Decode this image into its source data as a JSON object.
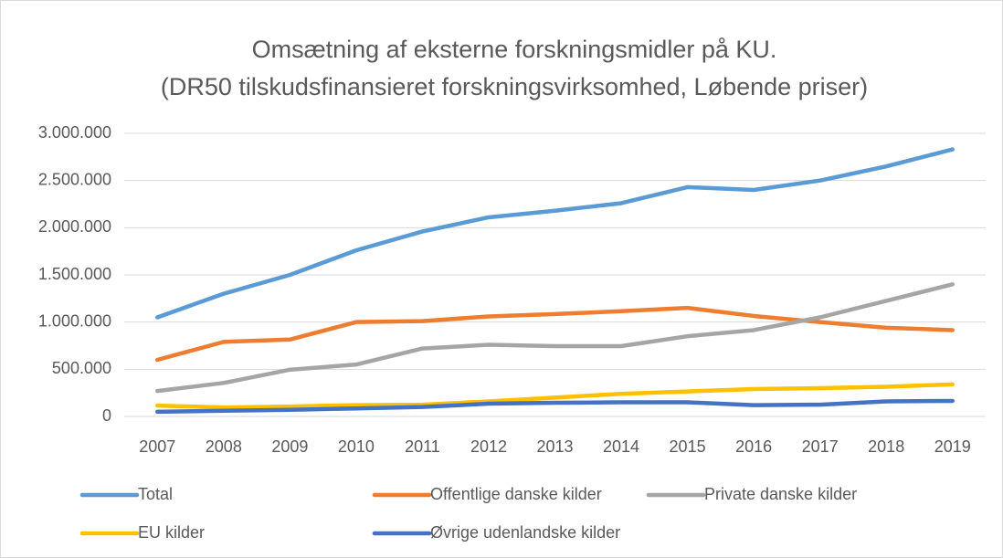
{
  "chart_data": {
    "type": "line",
    "title": "Omsætning af eksterne forskningsmidler på KU.",
    "subtitle": "(DR50 tilskudsfinansieret forskningsvirksomhed, Løbende priser)",
    "categories": [
      "2007",
      "2008",
      "2009",
      "2010",
      "2011",
      "2012",
      "2013",
      "2014",
      "2015",
      "2016",
      "2017",
      "2018",
      "2019"
    ],
    "series": [
      {
        "name": "Total",
        "color": "#5b9bd5",
        "values": [
          1050000,
          1300000,
          1500000,
          1760000,
          1960000,
          2110000,
          2180000,
          2260000,
          2430000,
          2400000,
          2500000,
          2650000,
          2830000
        ]
      },
      {
        "name": "Offentlige danske kilder",
        "color": "#ed7d31",
        "values": [
          600000,
          790000,
          815000,
          1000000,
          1010000,
          1060000,
          1085000,
          1115000,
          1150000,
          1065000,
          1000000,
          940000,
          915000
        ]
      },
      {
        "name": "Private danske kilder",
        "color": "#a5a5a5",
        "values": [
          270000,
          355000,
          495000,
          550000,
          720000,
          760000,
          745000,
          745000,
          850000,
          915000,
          1050000,
          1225000,
          1400000
        ]
      },
      {
        "name": "EU kilder",
        "color": "#ffc000",
        "values": [
          115000,
          95000,
          105000,
          120000,
          125000,
          160000,
          200000,
          240000,
          265000,
          290000,
          300000,
          315000,
          340000
        ]
      },
      {
        "name": "Øvrige udenlandske kilder",
        "color": "#4472c4",
        "values": [
          50000,
          60000,
          70000,
          85000,
          100000,
          135000,
          145000,
          150000,
          150000,
          120000,
          125000,
          160000,
          165000
        ]
      }
    ],
    "ylim": [
      0,
      3000000
    ],
    "yticks": [
      0,
      {
        "value": 500000,
        "label": "500.000"
      },
      {
        "value": 1000000,
        "label": "1.000.000"
      },
      {
        "value": 1500000,
        "label": "1.500.000"
      },
      {
        "value": 2000000,
        "label": "2.000.000"
      },
      {
        "value": 2500000,
        "label": "2.500.000"
      },
      {
        "value": 3000000,
        "label": "3.000.000"
      }
    ],
    "grid": true,
    "legend": "bottom"
  }
}
